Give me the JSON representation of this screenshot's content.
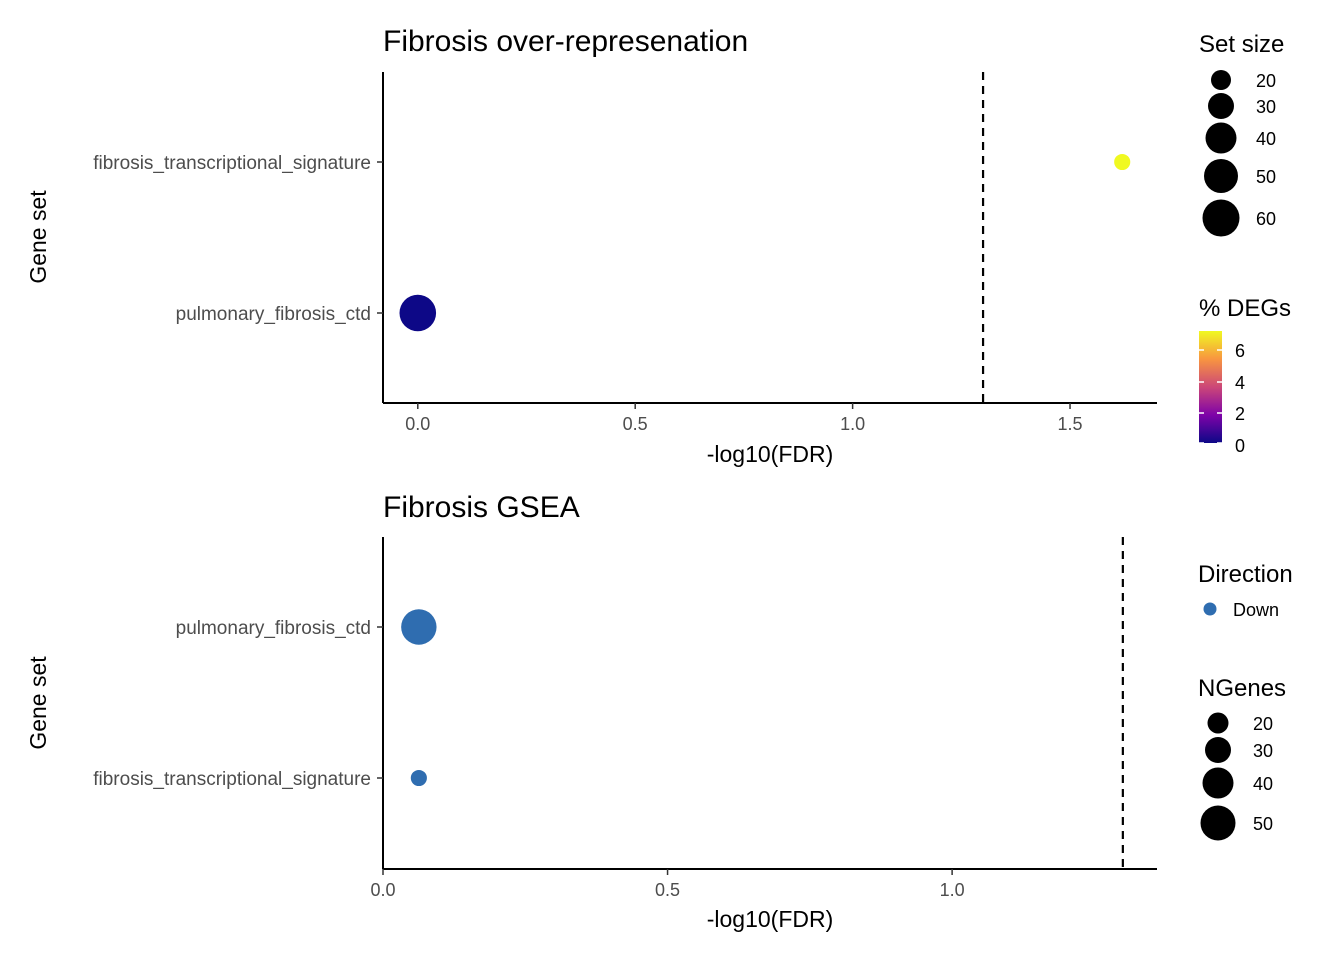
{
  "chart_data": [
    {
      "type": "scatter",
      "title": "Fibrosis over-represenation",
      "xlabel": "-log10(FDR)",
      "ylabel": "Gene set",
      "xlim": [
        -0.08,
        1.7
      ],
      "xticks": [
        0.0,
        0.5,
        1.0,
        1.5
      ],
      "xtick_labels": [
        "0.0",
        "0.5",
        "1.0",
        "1.5"
      ],
      "categories": [
        "fibrosis_transcriptional_signature",
        "pulmonary_fibrosis_ctd"
      ],
      "threshold": 1.3,
      "points": [
        {
          "gene_set": "fibrosis_transcriptional_signature",
          "x": 1.62,
          "set_size": 4,
          "pct_degs": 6.9,
          "color": "#F0F921"
        },
        {
          "gene_set": "pulmonary_fibrosis_ctd",
          "x": 0.0,
          "set_size": 60,
          "pct_degs": 0.0,
          "color": "#0D0887"
        }
      ],
      "legend": {
        "size": {
          "title": "Set size",
          "labels": [
            "20",
            "30",
            "40",
            "50",
            "60"
          ],
          "values": [
            20,
            30,
            40,
            50,
            60
          ]
        },
        "color": {
          "title": "% DEGs",
          "labels": [
            "6",
            "4",
            "2",
            "0"
          ],
          "values": [
            6,
            4,
            2,
            0
          ],
          "range": [
            0,
            7
          ],
          "colors": [
            "#0D0887",
            "#7E03A8",
            "#CC4778",
            "#F89540",
            "#F0F921"
          ]
        }
      }
    },
    {
      "type": "scatter",
      "title": "Fibrosis GSEA",
      "xlabel": "-log10(FDR)",
      "ylabel": "Gene set",
      "xlim": [
        0.0,
        1.36
      ],
      "xticks": [
        0.0,
        0.5,
        1.0
      ],
      "xtick_labels": [
        "0.0",
        "0.5",
        "1.0"
      ],
      "categories": [
        "pulmonary_fibrosis_ctd",
        "fibrosis_transcriptional_signature"
      ],
      "threshold": 1.3,
      "points": [
        {
          "gene_set": "pulmonary_fibrosis_ctd",
          "x": 0.063,
          "ngenes": 55,
          "direction": "Down",
          "color": "#2F6DB0"
        },
        {
          "gene_set": "fibrosis_transcriptional_signature",
          "x": 0.063,
          "ngenes": 4,
          "direction": "Down",
          "color": "#2F6DB0"
        }
      ],
      "legend": {
        "color": {
          "title": "Direction",
          "labels": [
            "Down"
          ],
          "colors": [
            "#2F6DB0"
          ]
        },
        "size": {
          "title": "NGenes",
          "labels": [
            "20",
            "30",
            "40",
            "50"
          ],
          "values": [
            20,
            30,
            40,
            50
          ]
        }
      }
    }
  ]
}
